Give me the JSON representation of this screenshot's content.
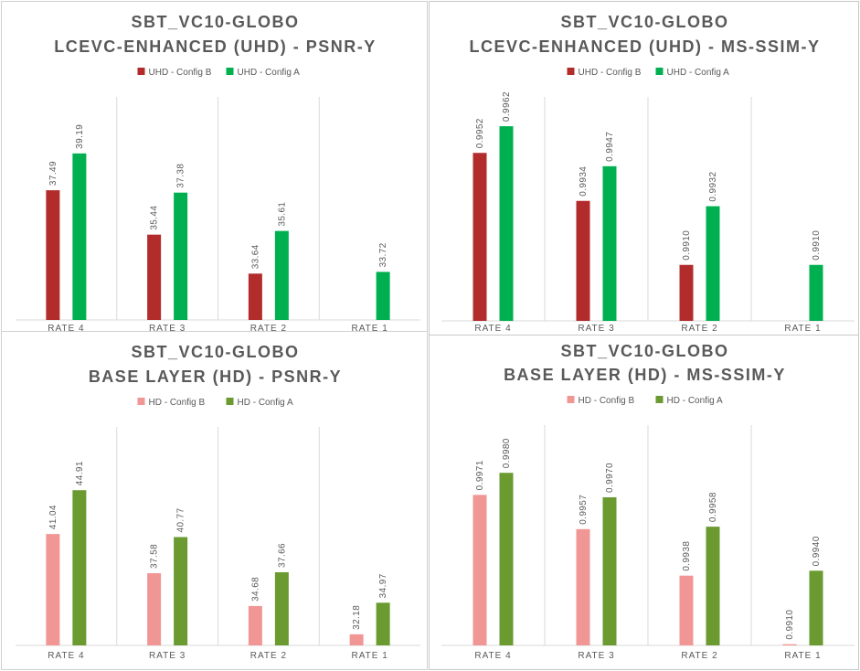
{
  "chart_data": [
    {
      "type": "bar",
      "title": "SBT_VC10-GLOBO",
      "subtitle": "LCEVC-ENHANCED (UHD) - PSNR-Y",
      "categories": [
        "RATE 4",
        "RATE 3",
        "RATE 2",
        "RATE 1"
      ],
      "series": [
        {
          "name": "UHD - Config B",
          "color": "#b22c2c",
          "values": [
            37.49,
            35.44,
            33.64,
            null
          ],
          "labels": [
            "37.49",
            "35.44",
            "33.64",
            ""
          ]
        },
        {
          "name": "UHD - Config A",
          "color": "#00b050",
          "values": [
            39.19,
            37.38,
            35.61,
            33.72
          ],
          "labels": [
            "39.19",
            "37.38",
            "35.61",
            "33.72"
          ]
        }
      ],
      "ylim": [
        31.5,
        41.8
      ],
      "legend_position": "top",
      "grid": false
    },
    {
      "type": "bar",
      "title": "SBT_VC10-GLOBO",
      "subtitle": "LCEVC-ENHANCED (UHD) - MS-SSIM-Y",
      "categories": [
        "RATE 4",
        "RATE 3",
        "RATE 2",
        "RATE 1"
      ],
      "series": [
        {
          "name": "UHD - Config B",
          "color": "#b22c2c",
          "values": [
            0.9952,
            0.9934,
            0.991,
            null
          ],
          "labels": [
            "0.9952",
            "0.9934",
            "0.9910",
            ""
          ]
        },
        {
          "name": "UHD - Config A",
          "color": "#00b050",
          "values": [
            0.9962,
            0.9947,
            0.9932,
            0.991
          ],
          "labels": [
            "0.9962",
            "0.9947",
            "0.9932",
            "0.9910"
          ]
        }
      ],
      "ylim": [
        0.9889,
        0.9973
      ],
      "legend_position": "top",
      "grid": false
    },
    {
      "type": "bar",
      "title": "SBT_VC10-GLOBO",
      "subtitle": "BASE LAYER (HD) - PSNR-Y",
      "categories": [
        "RATE 4",
        "RATE 3",
        "RATE 2",
        "RATE 1"
      ],
      "series": [
        {
          "name": "HD - Config B",
          "color": "#f09795",
          "values": [
            41.04,
            37.58,
            34.68,
            32.18
          ],
          "labels": [
            "41.04",
            "37.58",
            "34.68",
            "32.18"
          ]
        },
        {
          "name": "HD - Config A",
          "color": "#6a9a30",
          "values": [
            44.91,
            40.77,
            37.66,
            34.97
          ],
          "labels": [
            "44.91",
            "40.77",
            "37.66",
            "34.97"
          ]
        }
      ],
      "ylim": [
        31.2,
        50.5
      ],
      "legend_position": "top",
      "grid": false
    },
    {
      "type": "bar",
      "title": "SBT_VC10-GLOBO",
      "subtitle": "BASE LAYER (HD) - MS-SSIM-Y",
      "categories": [
        "RATE 4",
        "RATE 3",
        "RATE 2",
        "RATE 1"
      ],
      "series": [
        {
          "name": "HD - Config B",
          "color": "#f09795",
          "values": [
            0.9971,
            0.9957,
            0.9938,
            0.991
          ],
          "labels": [
            "0.9971",
            "0.9957",
            "0.9938",
            "0.9910"
          ]
        },
        {
          "name": "HD - Config A",
          "color": "#6a9a30",
          "values": [
            0.998,
            0.997,
            0.9958,
            0.994
          ],
          "labels": [
            "0.9980",
            "0.9970",
            "0.9958",
            "0.9940"
          ]
        }
      ],
      "ylim": [
        0.99095,
        0.99995
      ],
      "legend_position": "top",
      "grid": false
    }
  ]
}
